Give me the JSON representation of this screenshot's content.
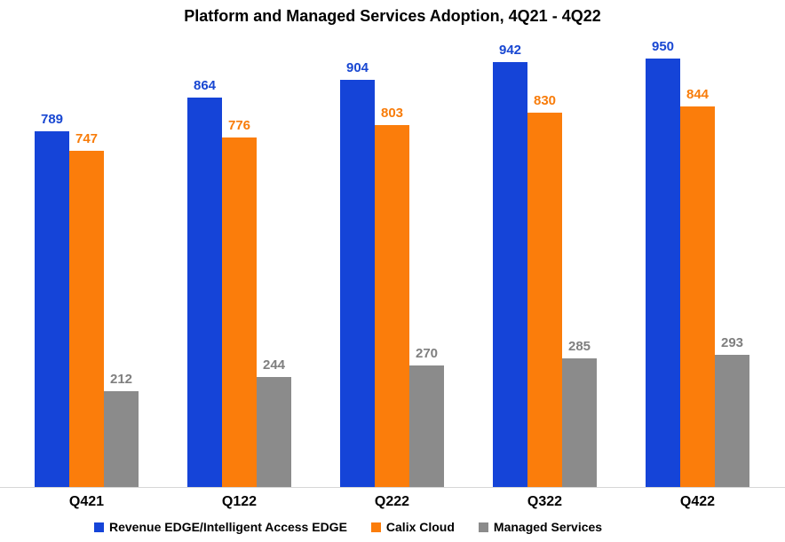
{
  "chart_data": {
    "type": "bar",
    "title": "Platform and Managed Services Adoption, 4Q21 - 4Q22",
    "categories": [
      "Q421",
      "Q122",
      "Q222",
      "Q322",
      "Q422"
    ],
    "series": [
      {
        "key": "revenue-edge",
        "name": "Revenue EDGE/Intelligent Access EDGE",
        "color": "#1544d8",
        "label_color": "#1847d2",
        "values": [
          789,
          864,
          904,
          942,
          950
        ]
      },
      {
        "key": "calix-cloud",
        "name": "Calix Cloud",
        "color": "#fb7d0b",
        "label_color": "#f87c0a",
        "values": [
          747,
          776,
          803,
          830,
          844
        ]
      },
      {
        "key": "managed-services",
        "name": "Managed Services",
        "color": "#8b8b8b",
        "label_color": "#7f7f7f",
        "values": [
          212,
          244,
          270,
          285,
          293
        ]
      }
    ],
    "ylim": [
      0,
      1000
    ],
    "grid": false,
    "y_axis_visible": false,
    "value_labels": true,
    "legend_position": "bottom",
    "axis_line_color": "#d6d6d6",
    "background_color": "#ffffff",
    "title_color": "#000000"
  }
}
